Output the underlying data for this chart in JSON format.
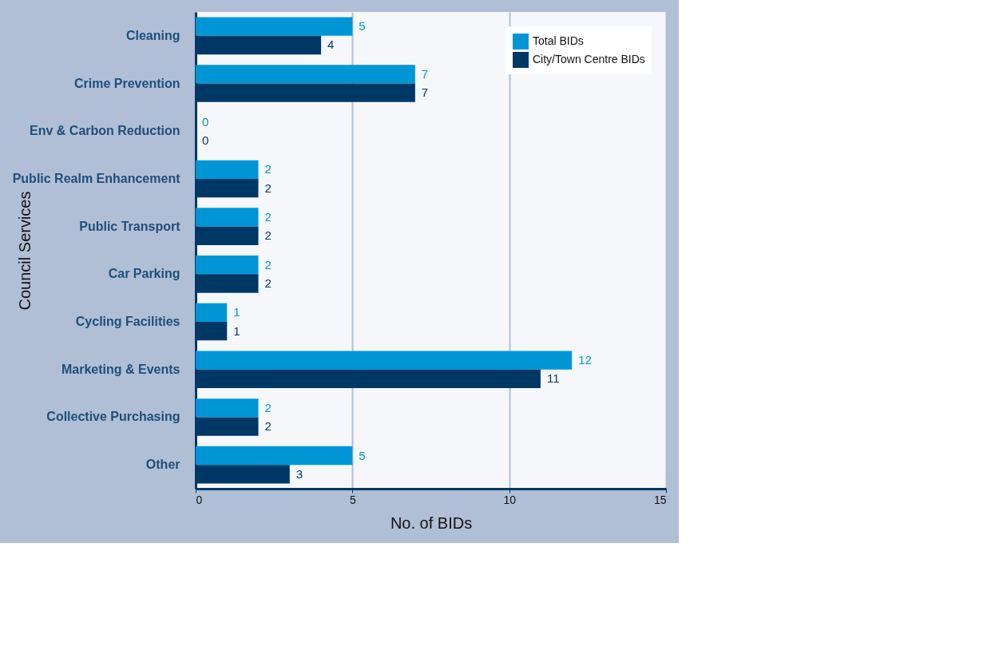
{
  "chart_data": {
    "type": "bar",
    "orientation": "horizontal",
    "xlabel": "No. of BIDs",
    "ylabel": "Council Services",
    "categories": [
      "Cleaning",
      "Crime Prevention",
      "Env & Carbon Reduction",
      "Public Realm Enhancement",
      "Public Transport",
      "Car Parking",
      "Cycling Facilities",
      "Marketing & Events",
      "Collective Purchasing",
      "Other"
    ],
    "series": [
      {
        "name": "Total BIDs",
        "color": "#0096d6",
        "values": [
          5,
          7,
          0,
          2,
          2,
          2,
          1,
          12,
          2,
          5
        ]
      },
      {
        "name": "City/Town Centre BIDs",
        "color": "#003865",
        "values": [
          4,
          7,
          0,
          2,
          2,
          2,
          1,
          11,
          2,
          3
        ]
      }
    ],
    "xlim": [
      0,
      15
    ],
    "xticks": [
      0,
      5,
      10,
      15
    ],
    "grid": "x",
    "legend": "top right",
    "data_labels": true
  }
}
